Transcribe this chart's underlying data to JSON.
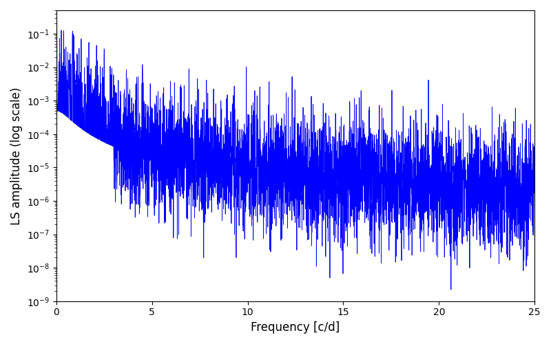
{
  "xlabel": "Frequency [c/d]",
  "ylabel": "LS amplitude (log scale)",
  "line_color": "#0000FF",
  "xlim": [
    0,
    25
  ],
  "ylim": [
    1e-09,
    0.5
  ],
  "background_color": "#ffffff",
  "figsize": [
    8.0,
    5.0
  ],
  "dpi": 100,
  "linewidth": 0.6
}
